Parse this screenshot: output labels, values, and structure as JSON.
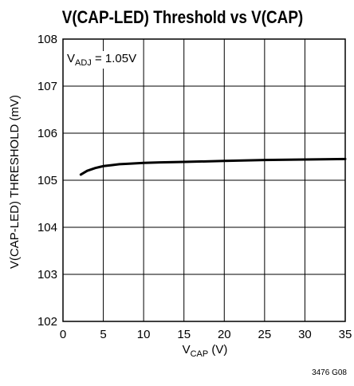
{
  "chart_data": {
    "type": "line",
    "title": "V(CAP-LED) Threshold vs V(CAP)",
    "xlabel": {
      "main": "V",
      "sub": "CAP",
      "unit": " (V)"
    },
    "ylabel": "V(CAP-LED) THRESHOLD (mV)",
    "xlim": [
      0,
      35
    ],
    "ylim": [
      102,
      108
    ],
    "xticks": [
      0,
      5,
      10,
      15,
      20,
      25,
      30,
      35
    ],
    "yticks": [
      102,
      103,
      104,
      105,
      106,
      107,
      108
    ],
    "grid": true,
    "annotation": {
      "main": "V",
      "sub": "ADJ",
      "rest": " = 1.05V"
    },
    "series": [
      {
        "x": [
          2.2,
          2.6,
          3.0,
          3.5,
          4.0,
          4.5,
          5,
          6,
          7,
          8,
          10,
          12,
          15,
          20,
          25,
          30,
          35
        ],
        "y": [
          105.12,
          105.16,
          105.2,
          105.23,
          105.26,
          105.28,
          105.3,
          105.32,
          105.34,
          105.35,
          105.37,
          105.38,
          105.39,
          105.41,
          105.43,
          105.44,
          105.45
        ]
      }
    ],
    "figure_id": "3476 G08"
  }
}
